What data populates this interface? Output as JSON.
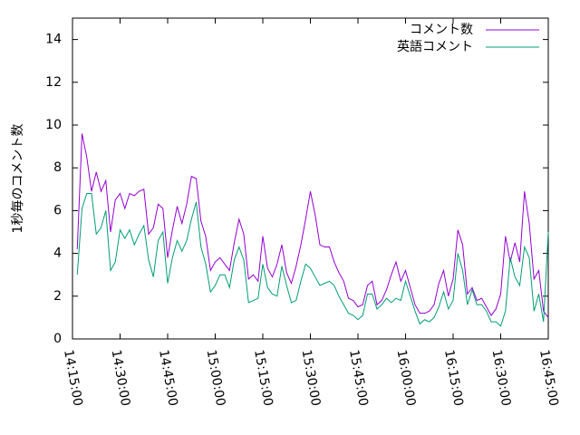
{
  "chart_data": {
    "type": "line",
    "ylabel": "1秒毎のコメント数",
    "x": [
      "14:16:30",
      "14:18:00",
      "14:19:30",
      "14:21:00",
      "14:22:30",
      "14:24:00",
      "14:25:30",
      "14:27:00",
      "14:28:30",
      "14:30:00",
      "14:31:30",
      "14:33:00",
      "14:34:30",
      "14:36:00",
      "14:37:30",
      "14:39:00",
      "14:40:30",
      "14:42:00",
      "14:43:30",
      "14:45:00",
      "14:46:30",
      "14:48:00",
      "14:49:30",
      "14:51:00",
      "14:52:30",
      "14:54:00",
      "14:55:30",
      "14:57:00",
      "14:58:30",
      "15:00:00",
      "15:01:30",
      "15:03:00",
      "15:04:30",
      "15:06:00",
      "15:07:30",
      "15:09:00",
      "15:10:30",
      "15:12:00",
      "15:13:30",
      "15:15:00",
      "15:16:30",
      "15:18:00",
      "15:19:30",
      "15:21:00",
      "15:22:30",
      "15:24:00",
      "15:25:30",
      "15:27:00",
      "15:28:30",
      "15:30:00",
      "15:31:30",
      "15:33:00",
      "15:34:30",
      "15:36:00",
      "15:37:30",
      "15:39:00",
      "15:40:30",
      "15:42:00",
      "15:43:30",
      "15:45:00",
      "15:46:30",
      "15:48:00",
      "15:49:30",
      "15:51:00",
      "15:52:30",
      "15:54:00",
      "15:55:30",
      "15:57:00",
      "15:58:30",
      "16:00:00",
      "16:01:30",
      "16:03:00",
      "16:04:30",
      "16:06:00",
      "16:07:30",
      "16:09:00",
      "16:10:30",
      "16:12:00",
      "16:13:30",
      "16:15:00",
      "16:16:30",
      "16:18:00",
      "16:19:30",
      "16:21:00",
      "16:22:30",
      "16:24:00",
      "16:25:30",
      "16:27:00",
      "16:28:30",
      "16:30:00",
      "16:31:30",
      "16:33:00",
      "16:34:30",
      "16:36:00",
      "16:37:30",
      "16:39:00",
      "16:40:30",
      "16:42:00",
      "16:43:30",
      "16:45:00"
    ],
    "series": [
      {
        "name": "コメント数",
        "color": "#9400d3",
        "values": [
          4.2,
          9.6,
          8.5,
          6.9,
          7.8,
          6.9,
          7.4,
          5.0,
          6.5,
          6.8,
          6.1,
          6.8,
          6.7,
          6.9,
          7.0,
          4.9,
          5.2,
          6.3,
          6.1,
          3.8,
          5.1,
          6.2,
          5.4,
          6.3,
          7.6,
          7.5,
          5.5,
          4.8,
          3.2,
          3.6,
          3.8,
          3.5,
          3.2,
          4.5,
          5.6,
          4.9,
          2.8,
          3.0,
          2.7,
          4.8,
          3.3,
          2.9,
          3.5,
          4.4,
          3.1,
          2.6,
          3.4,
          4.4,
          5.6,
          6.9,
          5.8,
          4.4,
          4.3,
          4.3,
          3.6,
          3.1,
          2.7,
          1.9,
          1.8,
          1.5,
          1.6,
          2.5,
          2.7,
          1.6,
          1.8,
          2.3,
          3.0,
          3.6,
          2.7,
          3.2,
          2.4,
          1.6,
          1.2,
          1.2,
          1.3,
          1.6,
          2.6,
          3.2,
          2.0,
          2.8,
          5.1,
          4.4,
          2.1,
          2.4,
          1.8,
          1.9,
          1.5,
          1.1,
          1.4,
          2.1,
          4.8,
          3.6,
          4.5,
          3.6,
          6.9,
          5.4,
          2.8,
          3.2,
          1.3,
          1.0
        ]
      },
      {
        "name": "英語コメント",
        "color": "#009e73",
        "values": [
          3.0,
          6.1,
          6.8,
          6.8,
          4.9,
          5.2,
          6.0,
          3.2,
          3.6,
          5.1,
          4.7,
          5.1,
          4.4,
          4.9,
          5.3,
          3.7,
          2.9,
          4.6,
          5.0,
          2.6,
          3.8,
          4.6,
          4.1,
          4.6,
          5.6,
          6.4,
          4.3,
          3.5,
          2.2,
          2.5,
          3.0,
          3.0,
          2.4,
          3.7,
          4.3,
          3.7,
          1.7,
          1.8,
          1.9,
          3.5,
          2.4,
          2.1,
          2.0,
          3.4,
          2.5,
          1.7,
          1.8,
          2.7,
          3.5,
          3.3,
          2.9,
          2.5,
          2.6,
          2.7,
          2.5,
          2.0,
          1.6,
          1.2,
          1.1,
          0.9,
          1.1,
          2.1,
          2.1,
          1.4,
          1.6,
          1.9,
          1.7,
          1.9,
          1.8,
          2.7,
          2.0,
          1.3,
          0.7,
          0.9,
          0.8,
          1.0,
          1.5,
          2.2,
          1.4,
          1.8,
          4.0,
          3.2,
          1.6,
          2.3,
          1.6,
          1.6,
          1.3,
          0.8,
          0.8,
          0.6,
          1.3,
          3.8,
          2.9,
          2.5,
          4.3,
          3.8,
          1.3,
          2.1,
          0.8,
          5.0
        ]
      }
    ],
    "xlim": [
      "14:15:00",
      "16:45:00"
    ],
    "xticks": [
      "14:15:00",
      "14:30:00",
      "14:45:00",
      "15:00:00",
      "15:15:00",
      "15:30:00",
      "15:45:00",
      "16:00:00",
      "16:15:00",
      "16:30:00",
      "16:45:00"
    ],
    "ylim": [
      0,
      15
    ],
    "yticks": [
      0,
      2,
      4,
      6,
      8,
      10,
      12,
      14
    ],
    "legend": "top-right",
    "grid": false
  }
}
